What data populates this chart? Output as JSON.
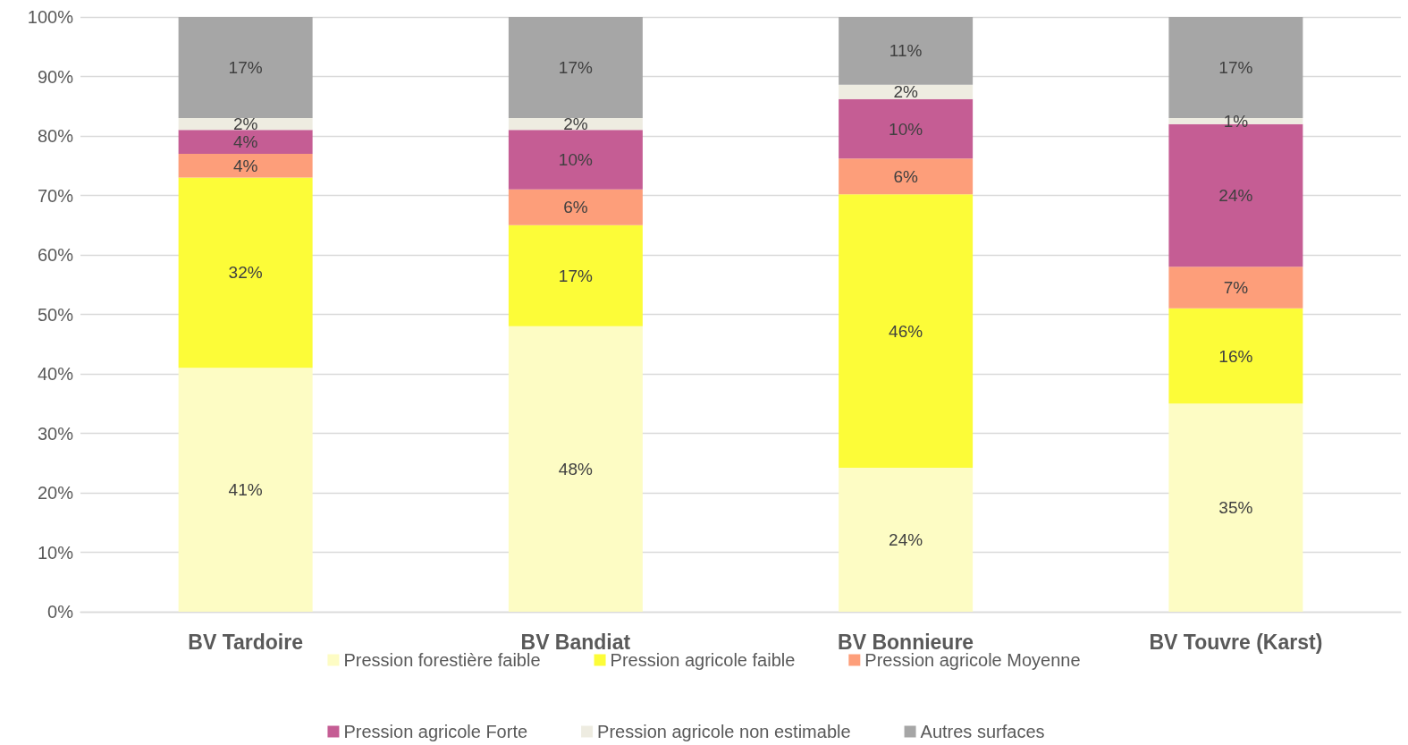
{
  "chart_data": {
    "type": "bar",
    "stacked": true,
    "categories": [
      "BV Tardoire",
      "BV Bandiat",
      "BV Bonnieure",
      "BV Touvre (Karst)"
    ],
    "series": [
      {
        "name": "Pression forestière faible",
        "color": "#fdfcc4",
        "values": [
          41,
          48,
          24.2,
          35
        ],
        "value_labels": [
          "41%",
          "48%",
          "24%",
          "35%"
        ]
      },
      {
        "name": "Pression agricole faible",
        "color": "#fcfc38",
        "values": [
          32,
          17,
          46,
          16
        ],
        "value_labels": [
          "32%",
          "17%",
          "46%",
          "16%"
        ]
      },
      {
        "name": "Pression agricole Moyenne",
        "color": "#fd9e7a",
        "values": [
          4,
          6,
          6,
          7
        ],
        "value_labels": [
          "4%",
          "6%",
          "6%",
          "7%"
        ]
      },
      {
        "name": "Pression agricole Forte",
        "color": "#c55d94",
        "values": [
          4,
          10,
          10,
          24
        ],
        "value_labels": [
          "4%",
          "10%",
          "10%",
          "24%"
        ]
      },
      {
        "name": "Pression agricole non estimable",
        "color": "#eeece1",
        "values": [
          2,
          2,
          2.4,
          1
        ],
        "value_labels": [
          "2%",
          "2%",
          "2%",
          "1%"
        ]
      },
      {
        "name": "Autres surfaces",
        "color": "#a6a6a6",
        "values": [
          17,
          17,
          11.4,
          17
        ],
        "value_labels": [
          "17%",
          "17%",
          "11%",
          "17%"
        ]
      }
    ],
    "ylim": [
      0,
      100
    ],
    "yticks": [
      {
        "value": 0,
        "label": "0%"
      },
      {
        "value": 10,
        "label": "10%"
      },
      {
        "value": 20,
        "label": "20%"
      },
      {
        "value": 30,
        "label": "30%"
      },
      {
        "value": 40,
        "label": "40%"
      },
      {
        "value": 50,
        "label": "50%"
      },
      {
        "value": 60,
        "label": "60%"
      },
      {
        "value": 70,
        "label": "70%"
      },
      {
        "value": 80,
        "label": "80%"
      },
      {
        "value": 90,
        "label": "90%"
      },
      {
        "value": 100,
        "label": "100%"
      }
    ],
    "grid": "y",
    "legend": "bottom"
  }
}
